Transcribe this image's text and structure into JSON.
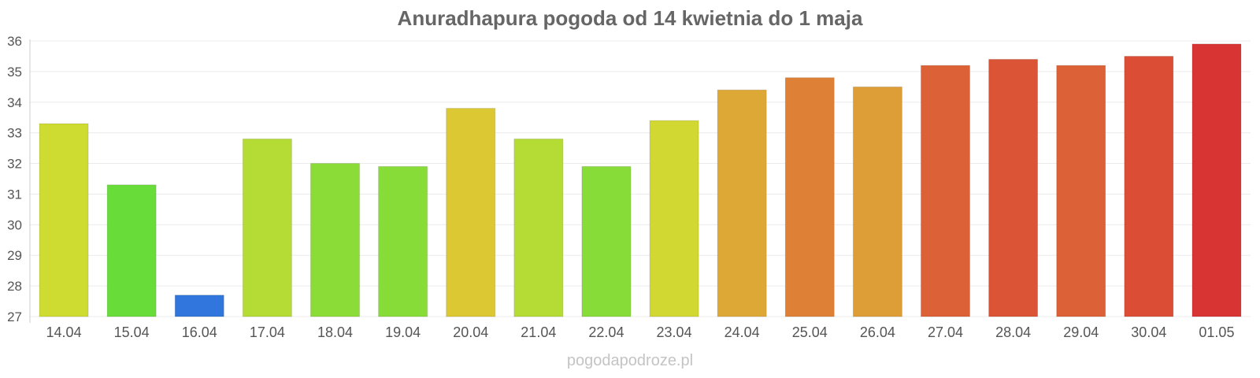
{
  "chart_data": {
    "type": "bar",
    "title": "Anuradhapura pogoda od 14 kwietnia do 1 maja",
    "xlabel": "",
    "ylabel": "",
    "categories": [
      "14.04",
      "15.04",
      "16.04",
      "17.04",
      "18.04",
      "19.04",
      "20.04",
      "21.04",
      "22.04",
      "23.04",
      "24.04",
      "25.04",
      "26.04",
      "27.04",
      "28.04",
      "29.04",
      "30.04",
      "01.05"
    ],
    "values": [
      33.3,
      31.3,
      27.7,
      32.8,
      32.0,
      31.9,
      33.8,
      32.8,
      31.9,
      33.4,
      34.4,
      34.8,
      34.5,
      35.2,
      35.4,
      35.2,
      35.5,
      35.9
    ],
    "ylim": [
      27,
      36
    ],
    "yticks": [
      27,
      28,
      29,
      30,
      31,
      32,
      33,
      34,
      35,
      36
    ],
    "grid": true,
    "legend": "none"
  },
  "footer": {
    "source": "pogodapodroze.pl"
  }
}
